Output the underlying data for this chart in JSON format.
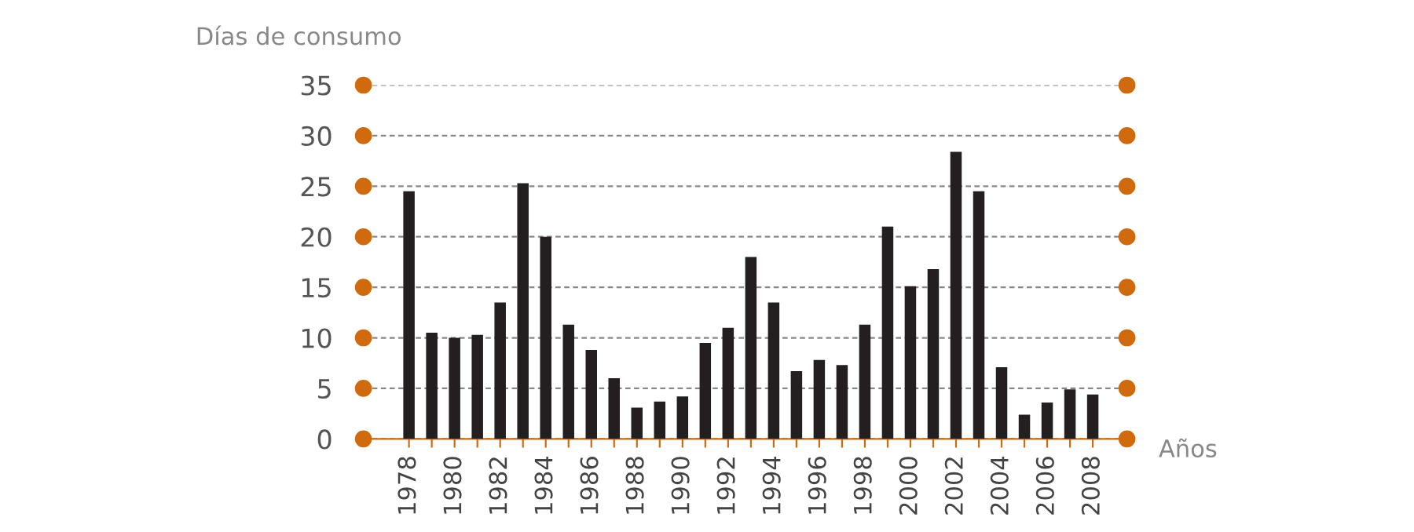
{
  "chart_data": {
    "type": "bar",
    "xlabel": "Años",
    "ylabel": "Días de consumo",
    "categories": [
      "1978",
      null,
      "1980",
      null,
      "1982",
      null,
      "1984",
      null,
      "1986",
      null,
      "1988",
      null,
      "1990",
      null,
      "1992",
      null,
      "1994",
      null,
      "1996",
      null,
      "1998",
      null,
      "2000",
      null,
      "2002",
      null,
      "2004",
      null,
      "2006",
      null,
      "2008"
    ],
    "values": [
      24.5,
      10.5,
      10,
      10.3,
      13.5,
      25.3,
      20,
      11.3,
      8.8,
      6,
      3.1,
      3.7,
      4.2,
      9.5,
      11,
      18,
      13.5,
      6.7,
      7.8,
      7.3,
      11.3,
      21,
      15.1,
      16.8,
      28.4,
      24.5,
      7.1,
      2.4,
      3.6,
      4.9,
      4.4
    ],
    "color": "#231f20",
    "ylim": [
      0,
      35
    ],
    "yticks": [
      0,
      5,
      10,
      15,
      20,
      25,
      30,
      35
    ],
    "grid": "y"
  }
}
